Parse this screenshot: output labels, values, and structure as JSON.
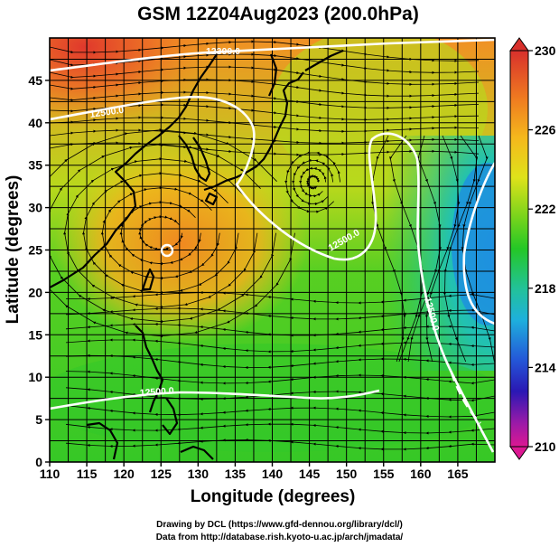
{
  "title": "GSM 12Z04Aug2023 (200.0hPa)",
  "x_axis": {
    "label": "Longitude (degrees)",
    "range": [
      110,
      170
    ],
    "ticks": [
      110,
      115,
      120,
      125,
      130,
      135,
      140,
      145,
      150,
      155,
      160,
      165
    ]
  },
  "y_axis": {
    "label": "Latitude  (degrees)",
    "range": [
      0,
      50
    ],
    "ticks": [
      0,
      5,
      10,
      15,
      20,
      25,
      30,
      35,
      40,
      45
    ]
  },
  "colorbar": {
    "min": 210,
    "max": 230,
    "tick_labels": [
      "230",
      "226",
      "222",
      "218",
      "214",
      "210"
    ],
    "colors": [
      "#d42a2a",
      "#ee7420",
      "#f6b21c",
      "#e6e21a",
      "#86d51c",
      "#22c71c",
      "#22c18a",
      "#1eb0d8",
      "#2255d8",
      "#2818b4",
      "#8a1aa8",
      "#d81894"
    ]
  },
  "contours": [
    {
      "label": "12300.0"
    },
    {
      "label": "12500.0"
    },
    {
      "label": "12500.0"
    },
    {
      "label": "12500.0"
    },
    {
      "label": "12500.0"
    }
  ],
  "credits": {
    "line1": "Drawing by DCL (https://www.gfd-dennou.org/library/dcl/)",
    "line2": "Data from http://database.rish.kyoto-u.ac.jp/arch/jmadata/"
  }
}
